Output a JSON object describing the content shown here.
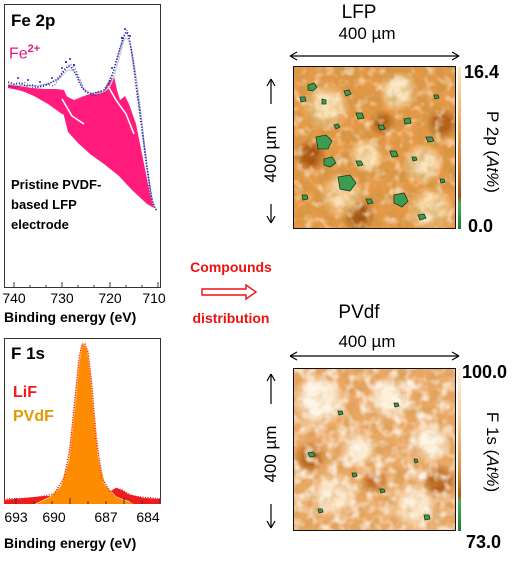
{
  "fe_panel": {
    "title": "Fe 2p",
    "species_label": "Fe",
    "species_superscript": "2+",
    "annotation_line1": "Pristine PVDF-",
    "annotation_line2": "based LFP",
    "annotation_line3": "electrode",
    "x_ticks": [
      "740",
      "730",
      "720",
      "710"
    ],
    "x_label": "Binding energy (eV)",
    "colors": {
      "fill": "#ff1c7c",
      "label": "#e0198b",
      "points": "#2a2ab8",
      "envelope": "#d8d8d8"
    }
  },
  "f_panel": {
    "title": "F 1s",
    "species": [
      "LiF",
      "PVdF"
    ],
    "x_ticks": [
      "693",
      "690",
      "687",
      "684"
    ],
    "x_label": "Binding energy (eV)",
    "colors": {
      "lif": "#ee1c1c",
      "pvdf": "#ff8c00",
      "pvdf_label": "#e39a00"
    }
  },
  "middle": {
    "label_line1": "Compounds",
    "label_line2": "distribution",
    "color": "#ee1111"
  },
  "lfp_map": {
    "title": "LFP",
    "width_label": "400 µm",
    "height_label": "400 µm",
    "scale_max": "16.4",
    "scale_min": "0.0",
    "scale_label": "P 2p (",
    "scale_unit": "At%",
    "scale_close": ")"
  },
  "pvdf_map": {
    "title": "PVdf",
    "width_label": "400 µm",
    "height_label": "400 µm",
    "scale_max": "100.0",
    "scale_min": "73.0",
    "scale_label": "F 1s (",
    "scale_unit": "At%",
    "scale_close": ")"
  }
}
